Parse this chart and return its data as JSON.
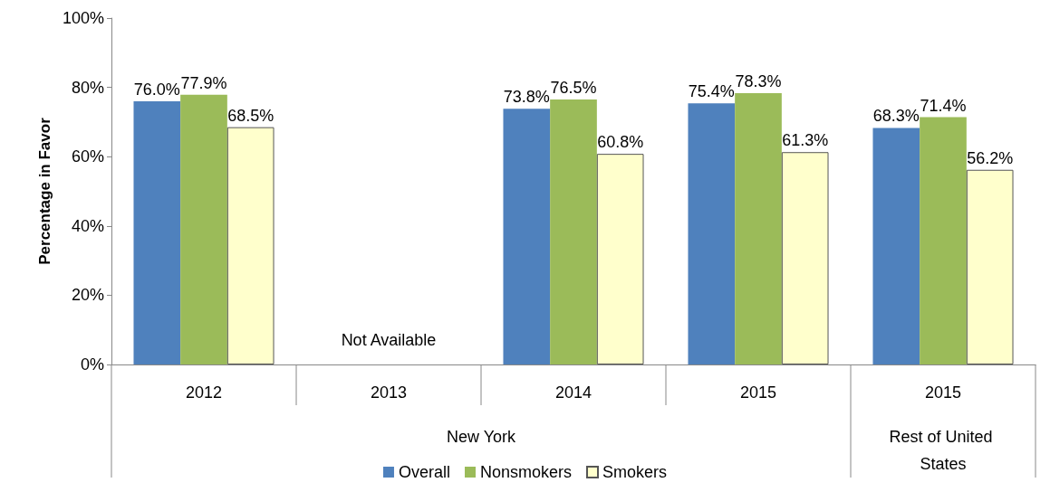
{
  "chart_data": {
    "type": "bar",
    "ylabel": "Percentage in Favor",
    "categories": [
      "2012",
      "2013",
      "2014",
      "2015",
      "2015"
    ],
    "series": [
      {
        "name": "Overall",
        "color": "#4f81bd",
        "values": [
          76.0,
          null,
          73.8,
          75.4,
          68.3
        ],
        "value_labels": [
          "76.0%",
          null,
          "73.8%",
          "75.4%",
          "68.3%"
        ]
      },
      {
        "name": "Nonsmokers",
        "color": "#9bbb59",
        "values": [
          77.9,
          null,
          76.5,
          78.3,
          71.4
        ],
        "value_labels": [
          "77.9%",
          null,
          "76.5%",
          "78.3%",
          "71.4%"
        ]
      },
      {
        "name": "Smokers",
        "color": "#ffffcc",
        "values": [
          68.5,
          null,
          60.8,
          61.3,
          56.2
        ],
        "value_labels": [
          "68.5%",
          null,
          "60.8%",
          "61.3%",
          "56.2%"
        ]
      }
    ],
    "ylim": [
      0,
      100
    ],
    "yticks": [
      {
        "value": 0,
        "label": "0%"
      },
      {
        "value": 20,
        "label": "20%"
      },
      {
        "value": 40,
        "label": "40%"
      },
      {
        "value": 60,
        "label": "60%"
      },
      {
        "value": 80,
        "label": "80%"
      },
      {
        "value": 100,
        "label": "100%"
      }
    ],
    "annotations": [
      "Not Available",
      "New York",
      "Rest of United States"
    ],
    "legend": "bottom",
    "grid": false
  }
}
